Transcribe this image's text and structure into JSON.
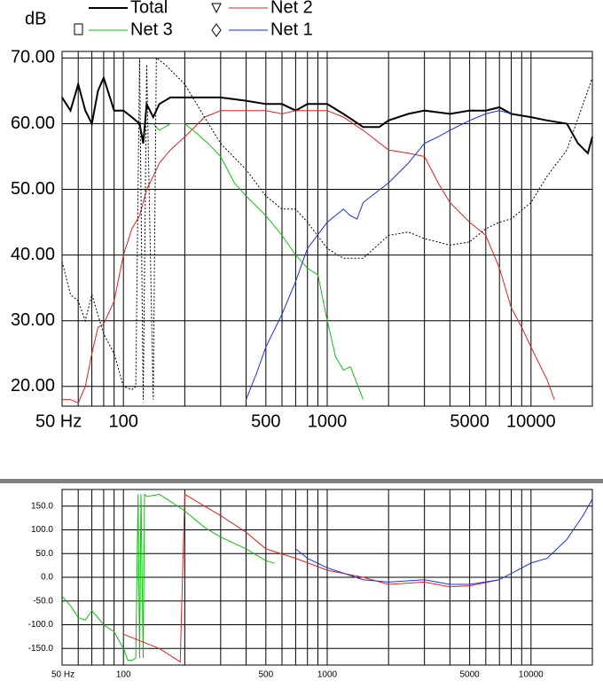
{
  "chart_data": [
    {
      "type": "line",
      "xlog": true,
      "y_label": "dB",
      "xlim": [
        50,
        20000
      ],
      "ylim": [
        17,
        71
      ],
      "xticks": [
        {
          "value": 50,
          "label": "50 Hz"
        },
        100,
        500,
        1000,
        5000,
        10000
      ],
      "x_minor": [
        60,
        70,
        80,
        90,
        200,
        300,
        400,
        600,
        700,
        800,
        900,
        2000,
        3000,
        4000,
        6000,
        7000,
        8000,
        9000,
        20000
      ],
      "yticks": [
        {
          "value": 20,
          "label": "20.00"
        },
        {
          "value": 30,
          "label": "30.00"
        },
        {
          "value": 40,
          "label": "40.00"
        },
        {
          "value": 50,
          "label": "50.00"
        },
        {
          "value": 60,
          "label": "60.00"
        },
        {
          "value": 70,
          "label": "70.00"
        }
      ],
      "series": [
        {
          "name": "Total",
          "color": "#000000",
          "width": 2,
          "x": [
            50,
            55,
            60,
            65,
            70,
            75,
            80,
            90,
            100,
            110,
            120,
            125,
            130,
            140,
            150,
            170,
            200,
            250,
            300,
            400,
            500,
            600,
            700,
            800,
            1000,
            1200,
            1500,
            1800,
            2000,
            2500,
            3000,
            4000,
            5000,
            6000,
            7000,
            8000,
            10000,
            12000,
            15000,
            17000,
            19000,
            20000
          ],
          "values": [
            64,
            62,
            66,
            62,
            60,
            65,
            67,
            62,
            62,
            61,
            60,
            57,
            63,
            61,
            63,
            64,
            64,
            64,
            64,
            63.5,
            63,
            63,
            62,
            63,
            63,
            61.5,
            59.5,
            59.5,
            60.5,
            61.5,
            62,
            61.5,
            62,
            62,
            62.5,
            61.5,
            61,
            60.5,
            60,
            57,
            55.5,
            58
          ]
        },
        {
          "name": "Net 2",
          "color": "#e02020",
          "width": 1,
          "x": [
            50,
            55,
            60,
            65,
            70,
            75,
            80,
            90,
            100,
            110,
            120,
            130,
            140,
            150,
            170,
            200,
            250,
            300,
            400,
            500,
            600,
            700,
            800,
            1000,
            1200,
            1500,
            2000,
            2500,
            3000,
            3500,
            4000,
            5000,
            6000,
            7000,
            8000,
            9000,
            10000,
            12000,
            13000
          ],
          "values": [
            18,
            18,
            17.5,
            20,
            25,
            29,
            29.5,
            33,
            40,
            44,
            46,
            50,
            52,
            54,
            56,
            58,
            61,
            62,
            62,
            62,
            61.5,
            62,
            62,
            62,
            61,
            59,
            56,
            55.5,
            55,
            51,
            48,
            45,
            43,
            38,
            32,
            29,
            26,
            21,
            18
          ]
        },
        {
          "name": "Net 3",
          "color": "#10c010",
          "width": 1,
          "x": [
            140,
            150,
            170,
            200,
            230,
            260,
            300,
            350,
            400,
            500,
            600,
            700,
            800,
            900,
            1000,
            1100,
            1200,
            1300,
            1500
          ],
          "values": [
            60,
            59,
            60,
            60,
            58.5,
            57,
            55,
            51,
            49,
            46,
            43,
            40,
            38,
            37,
            30,
            24.5,
            22.5,
            23,
            18
          ]
        },
        {
          "name": "Net 1",
          "color": "#1a2ee0",
          "width": 1,
          "x": [
            400,
            450,
            500,
            600,
            700,
            800,
            1000,
            1200,
            1300,
            1400,
            1500,
            2000,
            2500,
            3000,
            3500,
            4000,
            5000,
            6000,
            7000,
            8000
          ],
          "values": [
            18,
            22,
            26,
            31,
            36,
            41,
            45,
            47,
            46,
            45.5,
            48,
            51,
            54,
            57,
            58,
            59,
            60.5,
            61.5,
            62,
            61.5
          ]
        },
        {
          "color": "#000000",
          "width": 1,
          "dash": true,
          "x": [
            50,
            55,
            60,
            65,
            70,
            80,
            90,
            100,
            110,
            115,
            120,
            125,
            130,
            140,
            145,
            160,
            200,
            250,
            300,
            400,
            500,
            600,
            700,
            800,
            1000,
            1200,
            1500,
            2000,
            2500,
            3000,
            4000,
            5000,
            6000,
            7000,
            8000,
            10000,
            12000,
            15000,
            18000,
            20000
          ],
          "values": [
            39,
            34,
            33,
            30,
            34,
            28,
            25,
            20,
            19.5,
            20,
            70,
            18,
            69,
            18,
            70,
            69,
            66,
            61,
            57,
            53,
            49,
            47,
            47,
            45,
            41,
            39.5,
            39.5,
            43,
            43.5,
            42.5,
            41.5,
            42,
            44,
            45,
            45.5,
            48,
            52,
            56,
            63,
            67
          ]
        }
      ]
    },
    {
      "type": "line",
      "xlog": true,
      "xlim": [
        50,
        20000
      ],
      "ylim": [
        -185,
        185
      ],
      "xticks": [
        {
          "value": 50,
          "label": "50 Hz"
        },
        100,
        500,
        1000,
        5000,
        10000
      ],
      "x_minor": [
        60,
        70,
        80,
        90,
        200,
        300,
        400,
        600,
        700,
        800,
        900,
        2000,
        3000,
        4000,
        6000,
        7000,
        8000,
        9000,
        20000
      ],
      "yticks": [
        {
          "value": -150,
          "label": "-150.0"
        },
        {
          "value": -100,
          "label": "-100.0"
        },
        {
          "value": -50,
          "label": "-50.0"
        },
        {
          "value": 0,
          "label": "0.0"
        },
        {
          "value": 50,
          "label": "50.0"
        },
        {
          "value": 100,
          "label": "100.0"
        },
        {
          "value": 150,
          "label": "150.0"
        }
      ],
      "series": [
        {
          "color": "#10c010",
          "width": 1,
          "x": [
            50,
            55,
            60,
            65,
            70,
            80,
            90,
            100,
            105,
            110,
            115,
            118,
            120,
            122,
            125,
            127,
            130,
            150,
            170,
            200,
            250,
            300,
            400,
            500,
            550
          ],
          "values": [
            -40,
            -60,
            -85,
            -90,
            -70,
            -100,
            -115,
            -150,
            -175,
            -175,
            -170,
            175,
            -170,
            175,
            -170,
            175,
            170,
            175,
            160,
            140,
            105,
            85,
            60,
            35,
            30
          ]
        },
        {
          "color": "#e02020",
          "width": 1,
          "x": [
            100,
            150,
            190,
            200,
            250,
            300,
            400,
            500,
            700,
            1000,
            1500,
            2000,
            3000,
            4000,
            5000,
            7000
          ],
          "values": [
            -120,
            -150,
            -178,
            175,
            150,
            130,
            95,
            60,
            40,
            15,
            0,
            -15,
            -10,
            -20,
            -18,
            -5
          ]
        },
        {
          "color": "#1a2ee0",
          "width": 1,
          "x": [
            700,
            800,
            1000,
            1500,
            2000,
            3000,
            4000,
            5000,
            7000,
            10000,
            12000,
            15000,
            18000,
            20000
          ],
          "values": [
            60,
            40,
            20,
            -5,
            -10,
            -5,
            -15,
            -15,
            -5,
            30,
            40,
            80,
            130,
            165
          ]
        }
      ]
    }
  ]
}
